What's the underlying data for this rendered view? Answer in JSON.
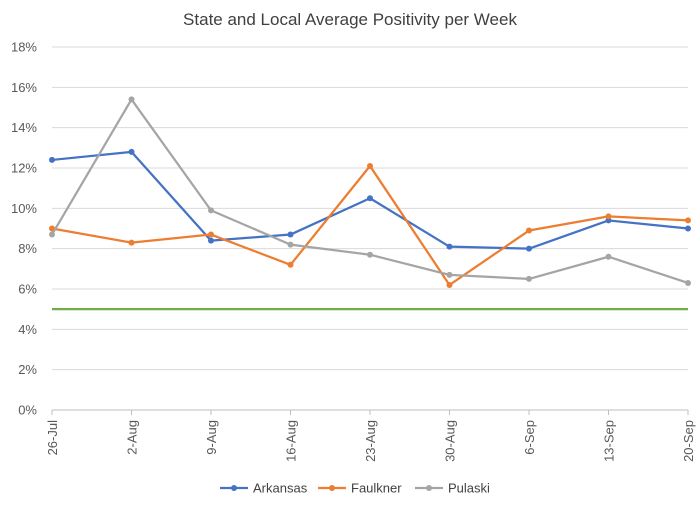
{
  "chart_data": {
    "type": "line",
    "title": "State and Local Average Positivity per Week",
    "categories": [
      "26-Jul",
      "2-Aug",
      "9-Aug",
      "16-Aug",
      "23-Aug",
      "30-Aug",
      "6-Sep",
      "13-Sep",
      "20-Sep"
    ],
    "y_ticks": [
      "0%",
      "2%",
      "4%",
      "6%",
      "8%",
      "10%",
      "12%",
      "14%",
      "16%",
      "18%"
    ],
    "ylim": [
      0,
      18
    ],
    "series": [
      {
        "name": "Arkansas",
        "color": "#4472C4",
        "values": [
          12.4,
          12.8,
          8.4,
          8.7,
          10.5,
          8.1,
          8.0,
          9.4,
          9.0
        ]
      },
      {
        "name": "Faulkner",
        "color": "#ED7D31",
        "values": [
          9.0,
          8.3,
          8.7,
          7.2,
          12.1,
          6.2,
          8.9,
          9.6,
          9.4
        ]
      },
      {
        "name": "Pulaski",
        "color": "#A5A5A5",
        "values": [
          8.7,
          15.4,
          9.9,
          8.2,
          7.7,
          6.7,
          6.5,
          7.6,
          6.3
        ]
      }
    ],
    "reference_line": {
      "value": 5.0,
      "color": "#70AD47"
    },
    "legend": "bottom",
    "grid": true
  }
}
